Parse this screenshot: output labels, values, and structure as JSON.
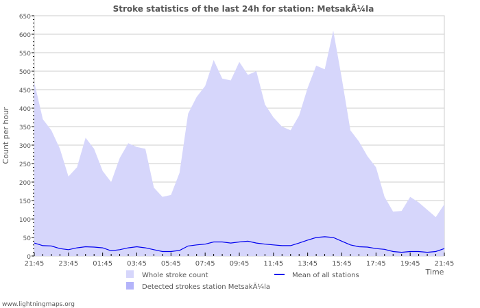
{
  "chart_data": {
    "type": "area",
    "title": "Stroke statistics of the last 24h for station: MetsakÃ¼la",
    "xlabel": "Time",
    "ylabel": "Count per hour",
    "ylim": [
      0,
      650
    ],
    "yticks": [
      0,
      50,
      100,
      150,
      200,
      250,
      300,
      350,
      400,
      450,
      500,
      550,
      600,
      650
    ],
    "xtick_labels": [
      "21:45",
      "23:45",
      "01:45",
      "03:45",
      "05:45",
      "07:45",
      "09:45",
      "11:45",
      "13:45",
      "15:45",
      "17:45",
      "19:45",
      "21:45"
    ],
    "x_hours_from_start": [
      0,
      0.5,
      1,
      1.5,
      2,
      2.5,
      3,
      3.5,
      4,
      4.5,
      5,
      5.5,
      6,
      6.5,
      7,
      7.5,
      8,
      8.5,
      9,
      9.5,
      10,
      10.5,
      11,
      11.5,
      12,
      12.5,
      13,
      13.5,
      14,
      14.5,
      15,
      15.5,
      16,
      16.5,
      17,
      17.5,
      18,
      18.5,
      19,
      19.5,
      20,
      20.5,
      21,
      21.5,
      22,
      22.5,
      23,
      23.5,
      24
    ],
    "series": [
      {
        "name": "Whole stroke count",
        "color": "#d6d6fb",
        "kind": "area",
        "values": [
          470,
          370,
          340,
          290,
          215,
          240,
          320,
          290,
          230,
          200,
          265,
          305,
          295,
          290,
          185,
          160,
          165,
          225,
          385,
          430,
          460,
          530,
          480,
          475,
          525,
          490,
          500,
          410,
          375,
          350,
          340,
          380,
          455,
          515,
          505,
          610,
          480,
          340,
          310,
          270,
          240,
          160,
          120,
          122,
          160,
          145,
          125,
          105,
          140
        ]
      },
      {
        "name": "Detected strokes station MetsakÃ¼la",
        "color": "#b4b4fa",
        "kind": "area",
        "values": [
          0,
          0,
          0,
          0,
          0,
          0,
          0,
          0,
          0,
          0,
          0,
          0,
          0,
          0,
          0,
          0,
          0,
          0,
          0,
          0,
          0,
          0,
          0,
          0,
          0,
          0,
          0,
          0,
          0,
          0,
          0,
          0,
          0,
          0,
          0,
          0,
          0,
          0,
          0,
          0,
          0,
          0,
          0,
          0,
          0,
          0,
          0,
          0,
          0
        ]
      },
      {
        "name": "Mean of all stations",
        "color": "#0000ee",
        "kind": "line",
        "values": [
          35,
          28,
          27,
          20,
          17,
          22,
          25,
          24,
          22,
          14,
          17,
          22,
          25,
          22,
          17,
          12,
          12,
          15,
          27,
          30,
          32,
          38,
          38,
          35,
          38,
          40,
          35,
          32,
          30,
          28,
          28,
          35,
          43,
          50,
          52,
          50,
          40,
          30,
          25,
          24,
          20,
          18,
          12,
          10,
          12,
          12,
          10,
          12,
          20
        ]
      }
    ],
    "grid": true,
    "legend_placement": "bottom"
  },
  "footer": "www.lightningmaps.org"
}
